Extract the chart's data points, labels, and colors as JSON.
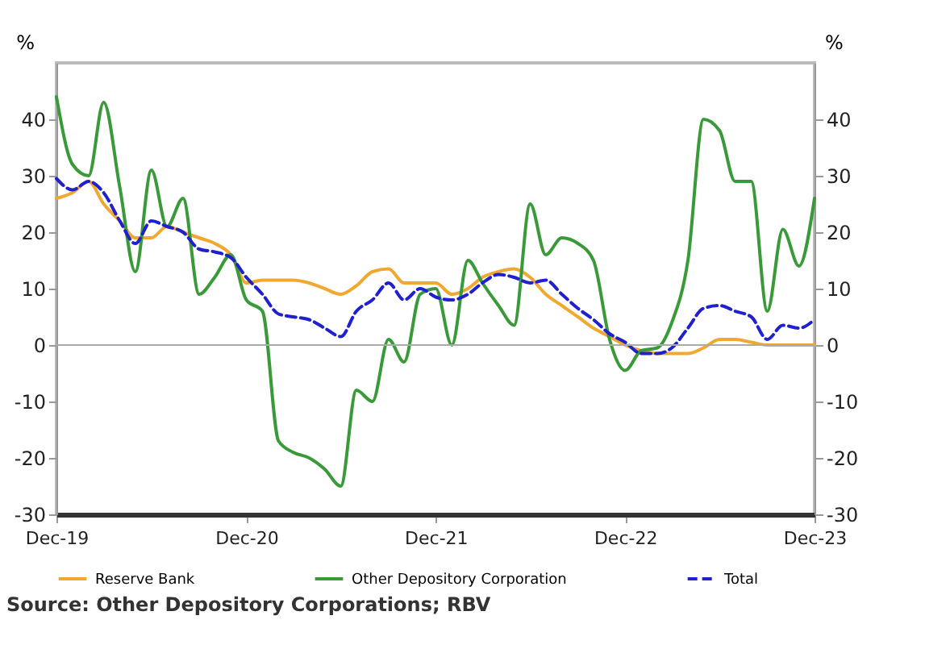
{
  "chart_data": {
    "type": "line",
    "ylabel": "%",
    "y2label": "%",
    "x": [
      "2019-12",
      "2020-01",
      "2020-02",
      "2020-03",
      "2020-04",
      "2020-05",
      "2020-06",
      "2020-07",
      "2020-08",
      "2020-09",
      "2020-10",
      "2020-11",
      "2020-12",
      "2021-01",
      "2021-02",
      "2021-03",
      "2021-04",
      "2021-05",
      "2021-06",
      "2021-07",
      "2021-08",
      "2021-09",
      "2021-10",
      "2021-11",
      "2021-12",
      "2022-01",
      "2022-02",
      "2022-03",
      "2022-04",
      "2022-05",
      "2022-06",
      "2022-07",
      "2022-08",
      "2022-09",
      "2022-10",
      "2022-11",
      "2022-12",
      "2023-01",
      "2023-02",
      "2023-03",
      "2023-04",
      "2023-05",
      "2023-06",
      "2023-07",
      "2023-08",
      "2023-09",
      "2023-10",
      "2023-11",
      "2023-12"
    ],
    "series": [
      {
        "name": "Reserve Bank",
        "color": "#f0a830",
        "line_style": "solid",
        "values": [
          26,
          27,
          29,
          25,
          22,
          19,
          19,
          21,
          20,
          19,
          18,
          16,
          11,
          11.5,
          11.5,
          11.5,
          11,
          10,
          9,
          10.5,
          13,
          13.5,
          11,
          11,
          11,
          9,
          10,
          12,
          13,
          13.5,
          12,
          9,
          7,
          5,
          3,
          1.5,
          0,
          -1,
          -1.5,
          -1.5,
          -1.5,
          -0.5,
          1,
          1,
          0.5,
          0,
          0,
          0,
          0
        ]
      },
      {
        "name": "Other Depository Corporation",
        "color": "#3a9a3a",
        "line_style": "solid",
        "values": [
          44,
          32,
          30,
          43,
          28,
          13,
          31,
          21,
          26,
          9,
          12,
          16,
          8,
          6,
          -17,
          -19,
          -20,
          -22,
          -25,
          -8,
          -10,
          1,
          -3,
          9,
          10,
          0,
          15,
          11,
          7,
          3.5,
          25,
          16,
          19,
          18,
          15,
          1,
          -4.5,
          -1,
          -0.5,
          4,
          15,
          40,
          38,
          29,
          29,
          6,
          20.5,
          14,
          26
        ]
      },
      {
        "name": "Total",
        "color": "#2020d0",
        "line_style": "dashed",
        "values": [
          29.5,
          27.5,
          29,
          27,
          22,
          18,
          22,
          21,
          20,
          17,
          16.5,
          15.5,
          12,
          9,
          5.5,
          5,
          4.5,
          3,
          1.5,
          6,
          8,
          11,
          8,
          10,
          8.5,
          8,
          9,
          11,
          12.5,
          12,
          11,
          11.5,
          9,
          6.5,
          4.5,
          2,
          0.5,
          -1.5,
          -1.5,
          -0.5,
          3,
          6.5,
          7,
          6,
          5,
          1,
          3.5,
          3,
          4.5
        ]
      }
    ],
    "xlim": [
      "2019-12",
      "2023-12"
    ],
    "xticks": [
      {
        "value": "2019-12",
        "label": "Dec-19"
      },
      {
        "value": "2020-12",
        "label": "Dec-20"
      },
      {
        "value": "2021-12",
        "label": "Dec-21"
      },
      {
        "value": "2022-12",
        "label": "Dec-22"
      },
      {
        "value": "2023-12",
        "label": "Dec-23"
      }
    ],
    "ylim": [
      -30,
      50
    ],
    "yticks": [
      -30,
      -20,
      -10,
      0,
      10,
      20,
      30,
      40
    ],
    "y2lim": [
      -30,
      50
    ],
    "y2ticks": [
      -30,
      -20,
      -10,
      0,
      10,
      20,
      30,
      40
    ],
    "ref_lines": [
      {
        "axis": "y",
        "value": 0,
        "color": "#aaaaaa"
      }
    ],
    "legend": "bottom",
    "grid": false,
    "annotations": [
      "Source: Other Depository Corporations; RBV"
    ]
  }
}
